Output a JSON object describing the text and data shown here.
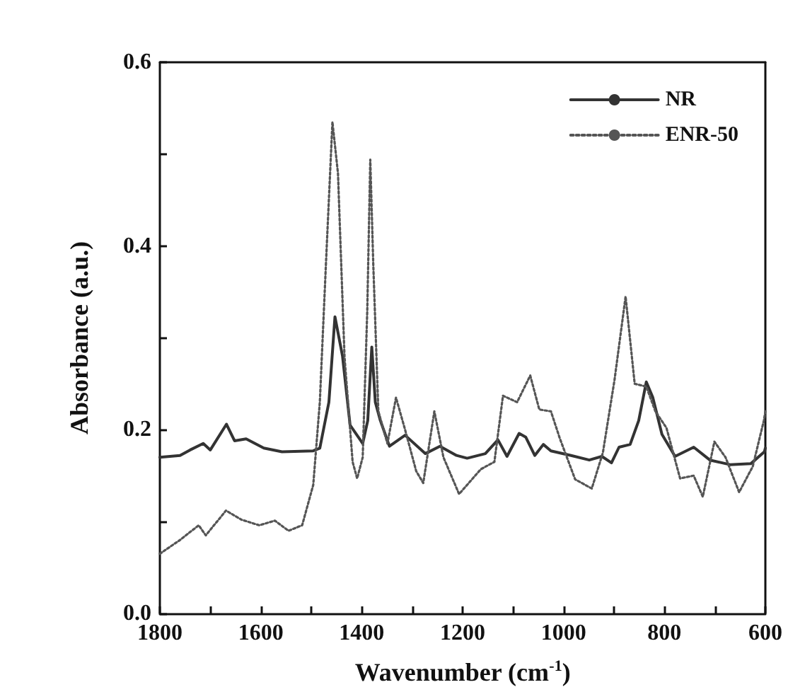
{
  "chart_data": {
    "type": "line",
    "xlabel": "Wavenumber (cm$^{-1}$)",
    "ylabel": "Absorbance (a.u.)",
    "xlim": [
      1800,
      600
    ],
    "xticks": [
      1800,
      {
        "value": 1700,
        "label": null
      },
      1600,
      {
        "value": 1500,
        "label": null
      },
      1400,
      {
        "value": 1300,
        "label": null
      },
      1200,
      {
        "value": 1100,
        "label": null
      },
      1000,
      {
        "value": 900,
        "label": null
      },
      800,
      {
        "value": 700,
        "label": null
      },
      600
    ],
    "ylim": [
      0,
      0.6
    ],
    "yticks": [
      {
        "value": 0,
        "label": "0.0"
      },
      {
        "value": 0.1,
        "label": null
      },
      0.2,
      {
        "value": 0.3,
        "label": null
      },
      0.4,
      {
        "value": 0.5,
        "label": null
      },
      0.6
    ],
    "grid": false,
    "legend": "top right",
    "marker": "none",
    "series": [
      {
        "name": "NR",
        "color": "#333333",
        "line_style": "solid",
        "x": [
          1800,
          1760,
          1740,
          1714,
          1700,
          1668,
          1652,
          1629,
          1594,
          1558,
          1496,
          1483,
          1465,
          1453,
          1438,
          1423,
          1398,
          1388,
          1380,
          1373,
          1363,
          1345,
          1314,
          1274,
          1245,
          1212,
          1191,
          1155,
          1130,
          1112,
          1088,
          1075,
          1057,
          1040,
          1025,
          985,
          949,
          924,
          905,
          890,
          868,
          851,
          836,
          823,
          805,
          779,
          742,
          710,
          670,
          629,
          602,
          600
        ],
        "values": [
          0.17,
          0.172,
          0.178,
          0.185,
          0.178,
          0.206,
          0.188,
          0.19,
          0.18,
          0.176,
          0.177,
          0.18,
          0.23,
          0.323,
          0.28,
          0.205,
          0.185,
          0.21,
          0.29,
          0.23,
          0.21,
          0.182,
          0.194,
          0.174,
          0.182,
          0.172,
          0.169,
          0.174,
          0.189,
          0.171,
          0.196,
          0.192,
          0.172,
          0.184,
          0.177,
          0.172,
          0.167,
          0.171,
          0.164,
          0.181,
          0.184,
          0.21,
          0.252,
          0.235,
          0.195,
          0.171,
          0.181,
          0.167,
          0.162,
          0.163,
          0.176,
          0.18
        ]
      },
      {
        "name": "ENR-50",
        "color": "#555555",
        "line_style": "dotted",
        "x": [
          1800,
          1760,
          1723,
          1709,
          1669,
          1638,
          1603,
          1572,
          1545,
          1518,
          1496,
          1483,
          1471,
          1458,
          1447,
          1434,
          1418,
          1409,
          1398,
          1389,
          1383,
          1377,
          1367,
          1349,
          1332,
          1314,
          1292,
          1278,
          1256,
          1238,
          1207,
          1191,
          1164,
          1137,
          1120,
          1092,
          1066,
          1048,
          1025,
          1007,
          977,
          944,
          922,
          899,
          877,
          859,
          836,
          818,
          796,
          769,
          742,
          724,
          701,
          679,
          652,
          625,
          603,
          600
        ],
        "values": [
          0.065,
          0.08,
          0.096,
          0.085,
          0.112,
          0.102,
          0.096,
          0.101,
          0.09,
          0.096,
          0.14,
          0.23,
          0.379,
          0.535,
          0.479,
          0.279,
          0.165,
          0.147,
          0.17,
          0.329,
          0.494,
          0.379,
          0.22,
          0.185,
          0.235,
          0.2,
          0.155,
          0.142,
          0.22,
          0.17,
          0.13,
          0.14,
          0.157,
          0.165,
          0.237,
          0.23,
          0.259,
          0.222,
          0.22,
          0.19,
          0.146,
          0.136,
          0.175,
          0.254,
          0.345,
          0.25,
          0.247,
          0.22,
          0.202,
          0.147,
          0.15,
          0.127,
          0.187,
          0.17,
          0.132,
          0.16,
          0.21,
          0.22
        ]
      }
    ]
  }
}
